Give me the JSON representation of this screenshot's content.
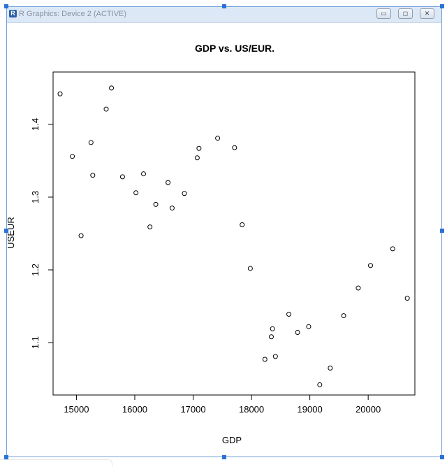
{
  "window": {
    "title": "R Graphics: Device 2 (ACTIVE)",
    "logo_letter": "R",
    "buttons": [
      {
        "name": "minimize",
        "glyph": "▭"
      },
      {
        "name": "maximize",
        "glyph": "◻"
      },
      {
        "name": "close",
        "glyph": "✕"
      }
    ]
  },
  "chart_data": {
    "type": "scatter",
    "title": "GDP vs. US/EUR.",
    "xlabel": "GDP",
    "ylabel": "USEUR",
    "xlim": [
      14600,
      20800
    ],
    "ylim": [
      1.028,
      1.472
    ],
    "x_ticks": [
      15000,
      16000,
      17000,
      18000,
      19000,
      20000
    ],
    "x_tick_labels": [
      "15000",
      "16000",
      "17000",
      "18000",
      "19000",
      "20000"
    ],
    "y_ticks": [
      1.1,
      1.2,
      1.3,
      1.4
    ],
    "y_tick_labels": [
      "1.1",
      "1.2",
      "1.3",
      "1.4"
    ],
    "grid": false,
    "point_style": "open-circle",
    "points": [
      {
        "x": 14720,
        "y": 1.442
      },
      {
        "x": 14930,
        "y": 1.356
      },
      {
        "x": 15080,
        "y": 1.247
      },
      {
        "x": 15250,
        "y": 1.375
      },
      {
        "x": 15280,
        "y": 1.33
      },
      {
        "x": 15510,
        "y": 1.421
      },
      {
        "x": 15600,
        "y": 1.45
      },
      {
        "x": 15790,
        "y": 1.328
      },
      {
        "x": 16020,
        "y": 1.306
      },
      {
        "x": 16150,
        "y": 1.332
      },
      {
        "x": 16260,
        "y": 1.259
      },
      {
        "x": 16360,
        "y": 1.29
      },
      {
        "x": 16570,
        "y": 1.32
      },
      {
        "x": 16640,
        "y": 1.285
      },
      {
        "x": 16850,
        "y": 1.305
      },
      {
        "x": 17070,
        "y": 1.354
      },
      {
        "x": 17100,
        "y": 1.367
      },
      {
        "x": 17420,
        "y": 1.381
      },
      {
        "x": 17710,
        "y": 1.368
      },
      {
        "x": 17840,
        "y": 1.262
      },
      {
        "x": 17980,
        "y": 1.202
      },
      {
        "x": 18230,
        "y": 1.077
      },
      {
        "x": 18340,
        "y": 1.108
      },
      {
        "x": 18360,
        "y": 1.119
      },
      {
        "x": 18410,
        "y": 1.081
      },
      {
        "x": 18640,
        "y": 1.139
      },
      {
        "x": 18790,
        "y": 1.114
      },
      {
        "x": 18980,
        "y": 1.122
      },
      {
        "x": 19170,
        "y": 1.042
      },
      {
        "x": 19350,
        "y": 1.065
      },
      {
        "x": 19580,
        "y": 1.137
      },
      {
        "x": 19830,
        "y": 1.175
      },
      {
        "x": 20040,
        "y": 1.206
      },
      {
        "x": 20420,
        "y": 1.229
      },
      {
        "x": 20670,
        "y": 1.161
      }
    ]
  }
}
